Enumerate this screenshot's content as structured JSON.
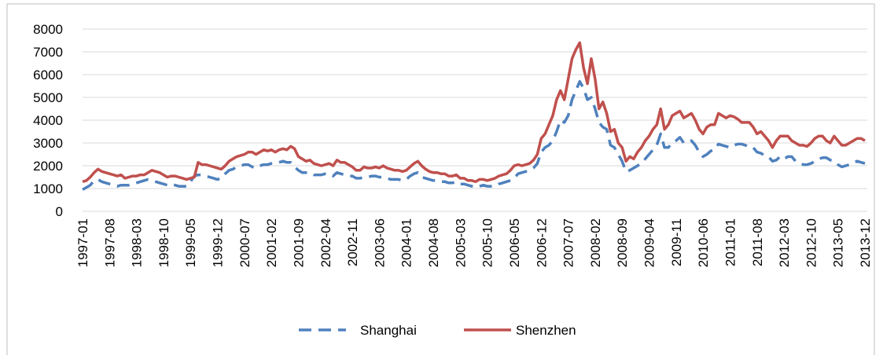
{
  "chart_data": {
    "type": "line",
    "categories": [
      "1997-01",
      null,
      null,
      null,
      null,
      null,
      null,
      "1997-08",
      null,
      null,
      null,
      null,
      null,
      null,
      "1998-03",
      null,
      null,
      null,
      null,
      null,
      null,
      "1998-10",
      null,
      null,
      null,
      null,
      null,
      null,
      "1999-05",
      null,
      null,
      null,
      null,
      null,
      null,
      "1999-12",
      null,
      null,
      null,
      null,
      null,
      null,
      "2000-07",
      null,
      null,
      null,
      null,
      null,
      null,
      "2001-02",
      null,
      null,
      null,
      null,
      null,
      null,
      "2001-09",
      null,
      null,
      null,
      null,
      null,
      null,
      "2002-04",
      null,
      null,
      null,
      null,
      null,
      null,
      "2002-11",
      null,
      null,
      null,
      null,
      null,
      null,
      "2003-06",
      null,
      null,
      null,
      null,
      null,
      null,
      "2004-01",
      null,
      null,
      null,
      null,
      null,
      null,
      "2004-08",
      null,
      null,
      null,
      null,
      null,
      null,
      "2005-03",
      null,
      null,
      null,
      null,
      null,
      null,
      "2005-10",
      null,
      null,
      null,
      null,
      null,
      null,
      "2006-05",
      null,
      null,
      null,
      null,
      null,
      null,
      "2006-12",
      null,
      null,
      null,
      null,
      null,
      null,
      "2007-07",
      null,
      null,
      null,
      null,
      null,
      null,
      "2008-02",
      null,
      null,
      null,
      null,
      null,
      null,
      "2008-09",
      null,
      null,
      null,
      null,
      null,
      null,
      "2009-04",
      null,
      null,
      null,
      null,
      null,
      null,
      "2009-11",
      null,
      null,
      null,
      null,
      null,
      null,
      "2010-06",
      null,
      null,
      null,
      null,
      null,
      null,
      "2011-01",
      null,
      null,
      null,
      null,
      null,
      null,
      "2011-08",
      null,
      null,
      null,
      null,
      null,
      null,
      "2012-03",
      null,
      null,
      null,
      null,
      null,
      null,
      "2012-10",
      null,
      null,
      null,
      null,
      null,
      null,
      "2013-05",
      null,
      null,
      null,
      null,
      null,
      null,
      "2013-12"
    ],
    "series": [
      {
        "name": "Shanghai",
        "color": "#4f81bd",
        "dashed": true,
        "values": [
          950,
          1050,
          1150,
          1350,
          1400,
          1300,
          1250,
          1200,
          1150,
          1100,
          1150,
          1150,
          1150,
          1200,
          1250,
          1300,
          1350,
          1400,
          1350,
          1300,
          1250,
          1200,
          1150,
          1200,
          1150,
          1100,
          1100,
          1100,
          1300,
          1550,
          1600,
          1600,
          1550,
          1500,
          1450,
          1400,
          1450,
          1650,
          1800,
          1850,
          1950,
          2000,
          2050,
          2050,
          1950,
          1900,
          2000,
          2050,
          2050,
          2100,
          2100,
          2150,
          2200,
          2150,
          2150,
          1950,
          1800,
          1700,
          1700,
          1700,
          1600,
          1600,
          1600,
          1650,
          1650,
          1550,
          1700,
          1650,
          1600,
          1550,
          1550,
          1450,
          1450,
          1500,
          1500,
          1550,
          1550,
          1500,
          1500,
          1450,
          1400,
          1400,
          1400,
          1350,
          1400,
          1550,
          1650,
          1700,
          1500,
          1450,
          1400,
          1350,
          1350,
          1300,
          1300,
          1250,
          1250,
          1300,
          1200,
          1200,
          1150,
          1100,
          1050,
          1100,
          1150,
          1100,
          1100,
          1100,
          1200,
          1250,
          1300,
          1350,
          1450,
          1650,
          1700,
          1750,
          1800,
          1900,
          2100,
          2600,
          2800,
          2900,
          3100,
          3500,
          4000,
          3900,
          4200,
          4900,
          5300,
          5700,
          5400,
          4900,
          5000,
          4500,
          3900,
          3700,
          3600,
          2900,
          2800,
          2500,
          2200,
          1750,
          1800,
          1900,
          2000,
          2100,
          2300,
          2500,
          2700,
          2900,
          3400,
          2800,
          2800,
          3000,
          3100,
          3250,
          3000,
          3050,
          3100,
          2900,
          2600,
          2400,
          2500,
          2650,
          2700,
          2950,
          2900,
          2850,
          2800,
          2900,
          2950,
          2950,
          2900,
          2800,
          2800,
          2600,
          2550,
          2450,
          2400,
          2200,
          2250,
          2400,
          2300,
          2400,
          2400,
          2200,
          2150,
          2050,
          2050,
          2100,
          2200,
          2300,
          2350,
          2350,
          2250,
          2200,
          2050,
          1950,
          2000,
          2050,
          2150,
          2200,
          2150,
          2100
        ]
      },
      {
        "name": "Shenzhen",
        "color": "#c0504d",
        "dashed": false,
        "values": [
          1300,
          1350,
          1500,
          1700,
          1850,
          1750,
          1700,
          1650,
          1600,
          1550,
          1600,
          1450,
          1500,
          1550,
          1550,
          1600,
          1600,
          1700,
          1800,
          1750,
          1700,
          1600,
          1500,
          1550,
          1550,
          1500,
          1450,
          1400,
          1450,
          1500,
          2150,
          2050,
          2050,
          2000,
          1950,
          1900,
          1850,
          2000,
          2200,
          2300,
          2400,
          2450,
          2500,
          2600,
          2600,
          2500,
          2600,
          2700,
          2650,
          2700,
          2600,
          2700,
          2750,
          2700,
          2850,
          2750,
          2400,
          2300,
          2200,
          2250,
          2100,
          2050,
          2000,
          2050,
          2100,
          2000,
          2250,
          2150,
          2150,
          2050,
          1950,
          1800,
          1800,
          1950,
          1900,
          1900,
          1950,
          1900,
          2000,
          1900,
          1850,
          1800,
          1800,
          1750,
          1800,
          1950,
          2100,
          2200,
          2000,
          1850,
          1750,
          1700,
          1700,
          1650,
          1650,
          1550,
          1550,
          1600,
          1450,
          1450,
          1350,
          1350,
          1300,
          1400,
          1400,
          1350,
          1400,
          1450,
          1550,
          1600,
          1650,
          1800,
          2000,
          2050,
          2000,
          2050,
          2100,
          2250,
          2500,
          3200,
          3400,
          3800,
          4200,
          4900,
          5300,
          4900,
          5800,
          6700,
          7100,
          7400,
          6300,
          5600,
          6700,
          5800,
          4500,
          4800,
          4300,
          3500,
          3600,
          3000,
          2800,
          2200,
          2400,
          2300,
          2600,
          2800,
          3100,
          3300,
          3600,
          3800,
          4500,
          3600,
          3800,
          4200,
          4300,
          4400,
          4100,
          4200,
          4300,
          4000,
          3600,
          3400,
          3700,
          3800,
          3800,
          4300,
          4200,
          4100,
          4200,
          4150,
          4050,
          3900,
          3900,
          3900,
          3700,
          3400,
          3500,
          3300,
          3100,
          2800,
          3100,
          3300,
          3300,
          3300,
          3100,
          3000,
          2900,
          2900,
          2850,
          3000,
          3200,
          3300,
          3300,
          3100,
          3000,
          3300,
          3100,
          2900,
          2900,
          3000,
          3100,
          3200,
          3200,
          3100
        ]
      }
    ],
    "ylim": [
      0,
      8000
    ],
    "yticks": [
      0,
      1000,
      2000,
      3000,
      4000,
      5000,
      6000,
      7000,
      8000
    ],
    "grid": true,
    "legend": "bottom"
  }
}
